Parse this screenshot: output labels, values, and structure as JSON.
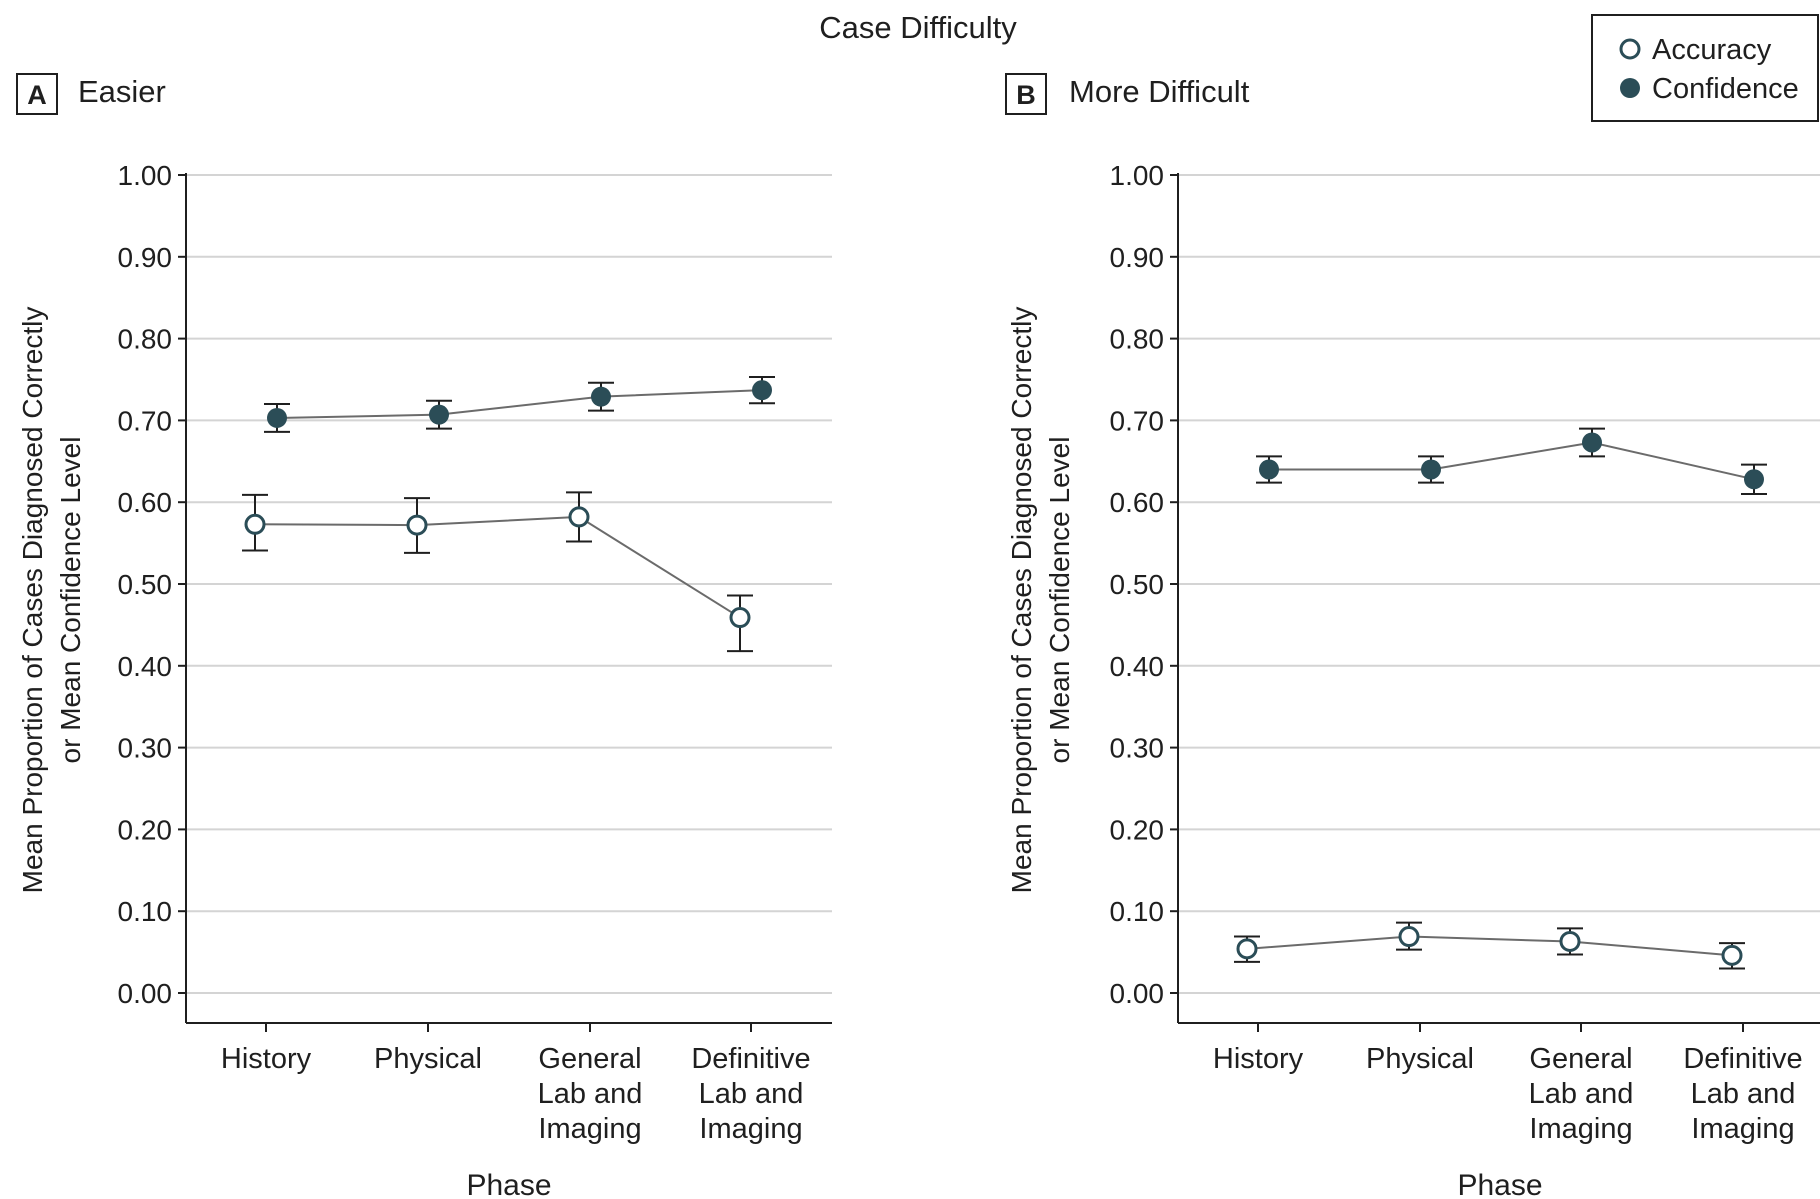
{
  "figure_title": "Case Difficulty",
  "legend": [
    {
      "label": "Accuracy",
      "marker": "open-circle"
    },
    {
      "label": "Confidence",
      "marker": "filled-circle"
    }
  ],
  "colors": {
    "filled_marker": "#2b4d57",
    "open_marker_stroke": "#2b4d57",
    "line": "#6b6b6b",
    "grid": "#d4d4d4"
  },
  "chart_data": [
    {
      "type": "line",
      "panel_letter": "A",
      "panel_title": "Easier",
      "xlabel": "Phase",
      "ylabel_lines": [
        "Mean Proportion of Cases Diagnosed Correctly",
        "or Mean Confidence Level"
      ],
      "ylim": [
        0,
        1
      ],
      "yticks": [
        "0.00",
        "0.10",
        "0.20",
        "0.30",
        "0.40",
        "0.50",
        "0.60",
        "0.70",
        "0.80",
        "0.90",
        "1.00"
      ],
      "categories": [
        [
          "History"
        ],
        [
          "Physical"
        ],
        [
          "General",
          "Lab and",
          "Imaging"
        ],
        [
          "Definitive",
          "Lab and",
          "Imaging"
        ]
      ],
      "grid": true,
      "series": [
        {
          "name": "Confidence",
          "values": [
            0.703,
            0.707,
            0.729,
            0.737
          ],
          "err_low": [
            0.686,
            0.69,
            0.712,
            0.721
          ],
          "err_high": [
            0.72,
            0.724,
            0.746,
            0.753
          ]
        },
        {
          "name": "Accuracy",
          "values": [
            0.573,
            0.572,
            0.582,
            0.459
          ],
          "err_low": [
            0.541,
            0.538,
            0.552,
            0.418
          ],
          "err_high": [
            0.609,
            0.605,
            0.612,
            0.486
          ]
        }
      ]
    },
    {
      "type": "line",
      "panel_letter": "B",
      "panel_title": "More Difficult",
      "xlabel": "Phase",
      "ylabel_lines": [
        "Mean Proportion of Cases Diagnosed Correctly",
        "or Mean Confidence Level"
      ],
      "ylim": [
        0,
        1
      ],
      "yticks": [
        "0.00",
        "0.10",
        "0.20",
        "0.30",
        "0.40",
        "0.50",
        "0.60",
        "0.70",
        "0.80",
        "0.90",
        "1.00"
      ],
      "categories": [
        [
          "History"
        ],
        [
          "Physical"
        ],
        [
          "General",
          "Lab and",
          "Imaging"
        ],
        [
          "Definitive",
          "Lab and",
          "Imaging"
        ]
      ],
      "grid": true,
      "series": [
        {
          "name": "Confidence",
          "values": [
            0.64,
            0.64,
            0.673,
            0.628
          ],
          "err_low": [
            0.624,
            0.624,
            0.656,
            0.61
          ],
          "err_high": [
            0.656,
            0.656,
            0.69,
            0.646
          ]
        },
        {
          "name": "Accuracy",
          "values": [
            0.054,
            0.069,
            0.063,
            0.046
          ],
          "err_low": [
            0.038,
            0.053,
            0.047,
            0.03
          ],
          "err_high": [
            0.069,
            0.086,
            0.079,
            0.061
          ]
        }
      ]
    }
  ]
}
